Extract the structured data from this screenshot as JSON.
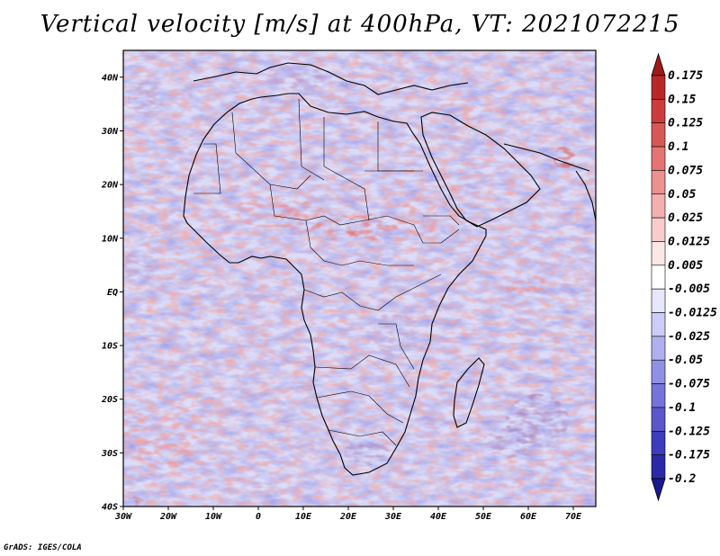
{
  "title": "Vertical velocity [m/s] at 400hPa, VT: 2021072215",
  "credit": "GrADS: IGES/COLA",
  "map": {
    "region": "Africa",
    "lon_range": [
      -30,
      75
    ],
    "lat_range": [
      -40,
      45
    ],
    "lon_ticks": [
      {
        "value": -30,
        "label": "30W"
      },
      {
        "value": -20,
        "label": "20W"
      },
      {
        "value": -10,
        "label": "10W"
      },
      {
        "value": 0,
        "label": "0"
      },
      {
        "value": 10,
        "label": "10E"
      },
      {
        "value": 20,
        "label": "20E"
      },
      {
        "value": 30,
        "label": "30E"
      },
      {
        "value": 40,
        "label": "40E"
      },
      {
        "value": 50,
        "label": "50E"
      },
      {
        "value": 60,
        "label": "60E"
      },
      {
        "value": 70,
        "label": "70E"
      }
    ],
    "lat_ticks": [
      {
        "value": 40,
        "label": "40N"
      },
      {
        "value": 30,
        "label": "30N"
      },
      {
        "value": 20,
        "label": "20N"
      },
      {
        "value": 10,
        "label": "10N"
      },
      {
        "value": 0,
        "label": "EQ"
      },
      {
        "value": -10,
        "label": "10S"
      },
      {
        "value": -20,
        "label": "20S"
      },
      {
        "value": -30,
        "label": "30S"
      },
      {
        "value": -40,
        "label": "40S"
      }
    ]
  },
  "colorbar": {
    "labels": [
      "0.175",
      "0.15",
      "0.125",
      "0.1",
      "0.075",
      "0.05",
      "0.025",
      "0.0125",
      "0.005",
      "-0.005",
      "-0.0125",
      "-0.025",
      "-0.05",
      "-0.075",
      "-0.1",
      "-0.125",
      "-0.175",
      "-0.2"
    ],
    "colors": [
      "#a01818",
      "#b82828",
      "#cc3c3c",
      "#d85858",
      "#e47474",
      "#ec9090",
      "#f2b0b0",
      "#f8cccc",
      "#fce6e6",
      "#ffffff",
      "#e6e6fc",
      "#ccccf6",
      "#b0b0ee",
      "#9090e4",
      "#7474da",
      "#5858cc",
      "#3c3cbc",
      "#2a2aa8",
      "#1a1a90"
    ]
  }
}
